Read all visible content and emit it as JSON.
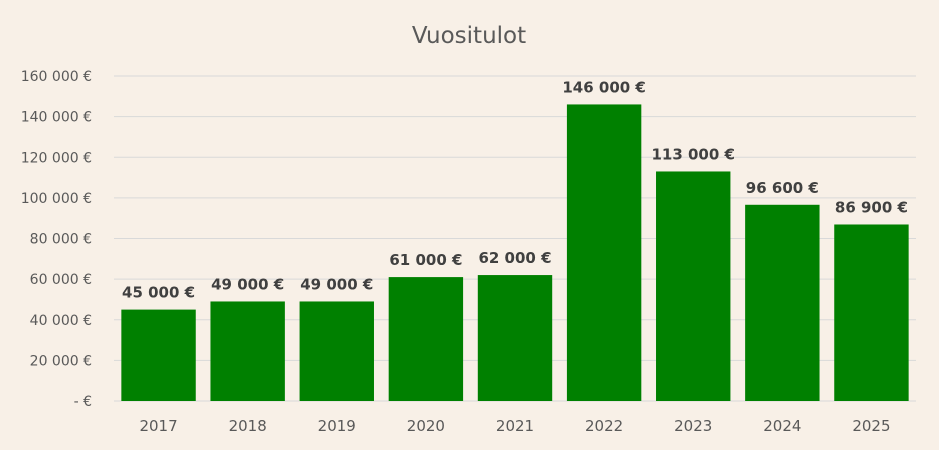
{
  "chart_data": {
    "type": "bar",
    "title": "Vuositulot",
    "categories": [
      "2017",
      "2018",
      "2019",
      "2020",
      "2021",
      "2022",
      "2023",
      "2024",
      "2025"
    ],
    "values": [
      45000,
      49000,
      49000,
      61000,
      62000,
      146000,
      113000,
      96600,
      86900
    ],
    "data_labels": [
      "45 000 €",
      "49 000 €",
      "49 000 €",
      "61 000 €",
      "62 000 €",
      "146 000 €",
      "113 000 €",
      "96 600 €",
      "86 900 €"
    ],
    "yticks": [
      0,
      20000,
      40000,
      60000,
      80000,
      100000,
      120000,
      140000,
      160000
    ],
    "ytick_labels": [
      "-   €",
      "20 000 €",
      "40 000 €",
      "60 000 €",
      "80 000 €",
      "100 000 €",
      "120 000 €",
      "140 000 €",
      "160 000 €"
    ],
    "ylim": [
      0,
      160000
    ],
    "grid": true,
    "legend": "none",
    "xlabel": "",
    "ylabel": "",
    "bar_color": "#008000"
  }
}
